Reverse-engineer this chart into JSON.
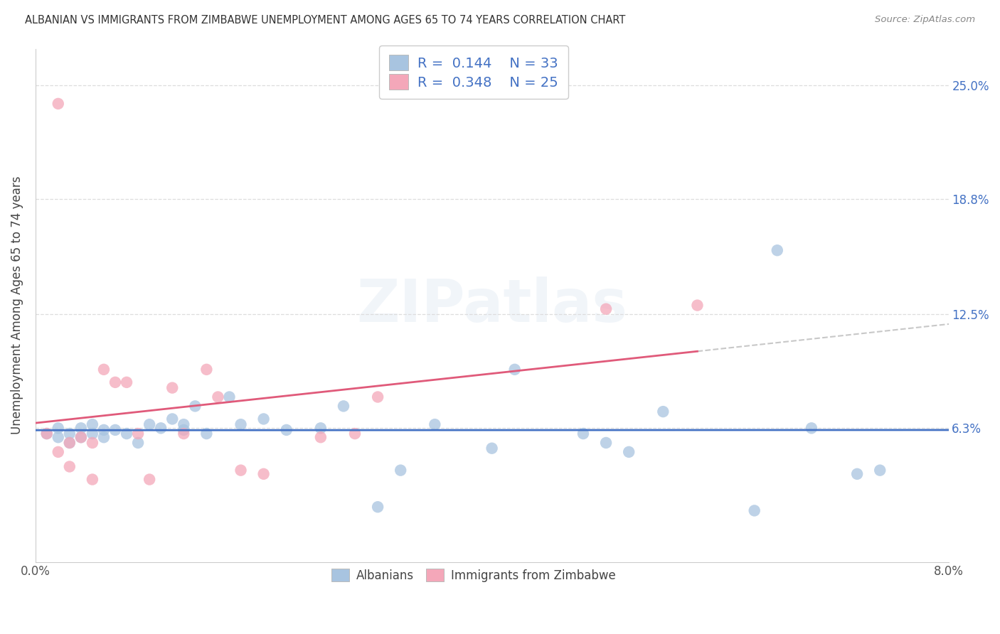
{
  "title": "ALBANIAN VS IMMIGRANTS FROM ZIMBABWE UNEMPLOYMENT AMONG AGES 65 TO 74 YEARS CORRELATION CHART",
  "source": "Source: ZipAtlas.com",
  "ylabel": "Unemployment Among Ages 65 to 74 years",
  "xlim": [
    0.0,
    0.08
  ],
  "ylim": [
    -0.01,
    0.27
  ],
  "right_ytick_values": [
    0.063,
    0.125,
    0.188,
    0.25
  ],
  "right_ytick_labels": [
    "6.3%",
    "12.5%",
    "18.8%",
    "25.0%"
  ],
  "grid_ytick_values": [
    0.063,
    0.125,
    0.188,
    0.25
  ],
  "xtick_values": [
    0.0,
    0.01,
    0.02,
    0.03,
    0.04,
    0.05,
    0.06,
    0.07,
    0.08
  ],
  "xtick_labels": [
    "0.0%",
    "",
    "",
    "",
    "",
    "",
    "",
    "",
    "8.0%"
  ],
  "background_color": "#ffffff",
  "albanians_scatter_color": "#a8c4e0",
  "albanians_line_color": "#4472c4",
  "zimbabwe_scatter_color": "#f4a7b9",
  "zimbabwe_line_color": "#e05a7a",
  "dashed_color": "#c8c8c8",
  "legend_R_albanians": "0.144",
  "legend_N_albanians": "33",
  "legend_R_zimbabwe": "0.348",
  "legend_N_zimbabwe": "25",
  "albanians_x": [
    0.001,
    0.002,
    0.002,
    0.003,
    0.003,
    0.004,
    0.004,
    0.005,
    0.005,
    0.006,
    0.006,
    0.007,
    0.008,
    0.009,
    0.01,
    0.011,
    0.012,
    0.013,
    0.013,
    0.014,
    0.015,
    0.017,
    0.018,
    0.02,
    0.022,
    0.025,
    0.027,
    0.03,
    0.032,
    0.035,
    0.04,
    0.042,
    0.048,
    0.05,
    0.052,
    0.055,
    0.063,
    0.065,
    0.068,
    0.072,
    0.074
  ],
  "albanians_y": [
    0.06,
    0.058,
    0.063,
    0.06,
    0.055,
    0.063,
    0.058,
    0.065,
    0.06,
    0.062,
    0.058,
    0.062,
    0.06,
    0.055,
    0.065,
    0.063,
    0.068,
    0.062,
    0.065,
    0.075,
    0.06,
    0.08,
    0.065,
    0.068,
    0.062,
    0.063,
    0.075,
    0.02,
    0.04,
    0.065,
    0.052,
    0.095,
    0.06,
    0.055,
    0.05,
    0.072,
    0.018,
    0.16,
    0.063,
    0.038,
    0.04
  ],
  "zimbabwe_x": [
    0.001,
    0.002,
    0.002,
    0.003,
    0.003,
    0.004,
    0.005,
    0.005,
    0.006,
    0.007,
    0.008,
    0.009,
    0.01,
    0.012,
    0.013,
    0.015,
    0.016,
    0.018,
    0.02,
    0.025,
    0.028,
    0.03,
    0.05,
    0.058
  ],
  "zimbabwe_y": [
    0.06,
    0.05,
    0.24,
    0.055,
    0.042,
    0.058,
    0.055,
    0.035,
    0.095,
    0.088,
    0.088,
    0.06,
    0.035,
    0.085,
    0.06,
    0.095,
    0.08,
    0.04,
    0.038,
    0.058,
    0.06,
    0.08,
    0.128,
    0.13
  ]
}
